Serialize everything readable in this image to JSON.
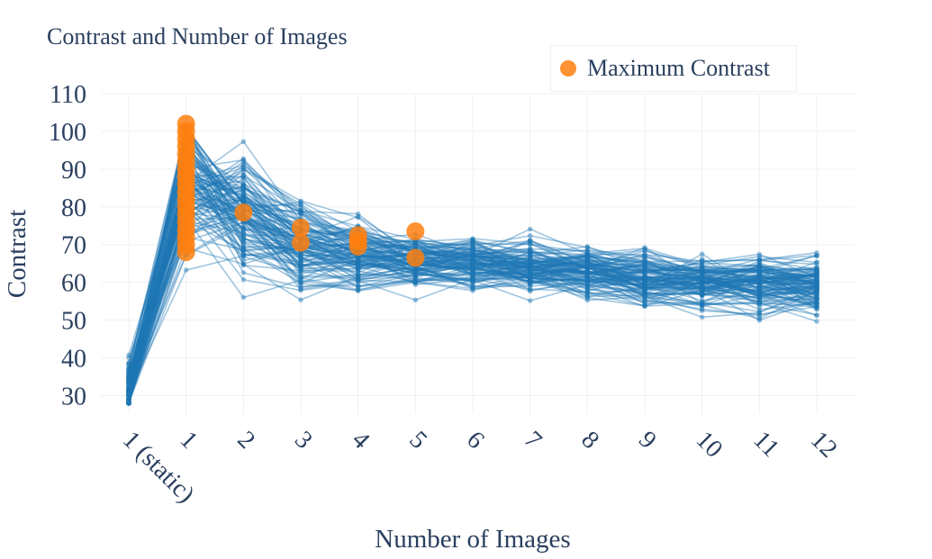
{
  "chart_data": {
    "type": "line",
    "title": "Contrast and Number of Images",
    "xlabel": "Number of Images",
    "ylabel": "Contrast",
    "categories": [
      "1 (static)",
      "1",
      "2",
      "3",
      "4",
      "5",
      "6",
      "7",
      "8",
      "9",
      "10",
      "11",
      "12"
    ],
    "y_ticks": [
      30,
      40,
      50,
      60,
      70,
      80,
      90,
      100,
      110
    ],
    "ylim": [
      22,
      110
    ],
    "grid": true,
    "legend": {
      "placement": "top-right",
      "entries": [
        {
          "name": "Maximum Contrast",
          "color": "#ff7f0e",
          "marker": "circle"
        }
      ]
    },
    "line_color": "#1f77b4",
    "max_color": "#ff7f0e",
    "series_count": 120,
    "series_template_means": [
      31,
      85,
      78,
      70,
      67,
      66,
      65,
      64,
      63,
      61,
      60,
      60,
      59
    ],
    "series_template_spread": [
      4,
      10,
      9,
      6,
      5,
      4,
      4,
      4,
      4,
      4,
      4,
      4,
      4
    ],
    "maximum_contrast_points": [
      {
        "x": "1",
        "y": 68
      },
      {
        "x": "1",
        "y": 70
      },
      {
        "x": "1",
        "y": 72
      },
      {
        "x": "1",
        "y": 74
      },
      {
        "x": "1",
        "y": 76
      },
      {
        "x": "1",
        "y": 78
      },
      {
        "x": "1",
        "y": 80
      },
      {
        "x": "1",
        "y": 82
      },
      {
        "x": "1",
        "y": 84
      },
      {
        "x": "1",
        "y": 86
      },
      {
        "x": "1",
        "y": 88
      },
      {
        "x": "1",
        "y": 90
      },
      {
        "x": "1",
        "y": 92
      },
      {
        "x": "1",
        "y": 94
      },
      {
        "x": "1",
        "y": 96
      },
      {
        "x": "1",
        "y": 98
      },
      {
        "x": "1",
        "y": 100
      },
      {
        "x": "1",
        "y": 102
      },
      {
        "x": "2",
        "y": 78.5
      },
      {
        "x": "3",
        "y": 74.5
      },
      {
        "x": "3",
        "y": 70.5
      },
      {
        "x": "4",
        "y": 72.5
      },
      {
        "x": "4",
        "y": 71
      },
      {
        "x": "4",
        "y": 69.5
      },
      {
        "x": "5",
        "y": 73.5
      },
      {
        "x": "5",
        "y": 66.5
      }
    ]
  }
}
